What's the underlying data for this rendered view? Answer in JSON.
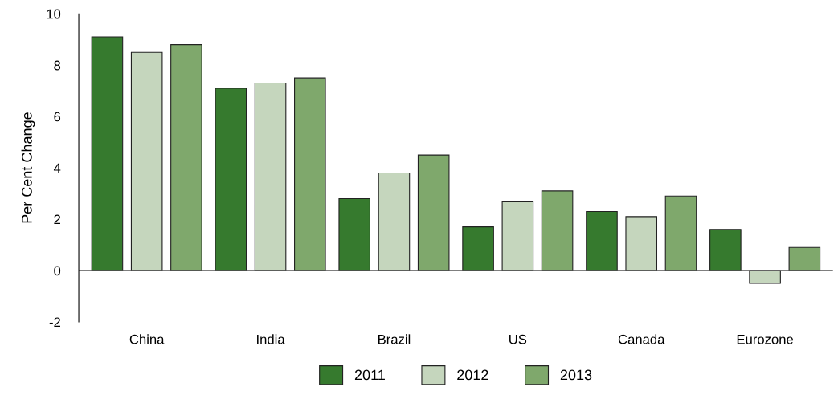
{
  "chart_data": {
    "type": "bar",
    "ylabel": "Per Cent Change",
    "categories": [
      "China",
      "India",
      "Brazil",
      "US",
      "Canada",
      "Eurozone"
    ],
    "series": [
      {
        "name": "2011",
        "color": "#367a2e",
        "values": [
          9.1,
          7.1,
          2.8,
          1.7,
          2.3,
          1.6
        ]
      },
      {
        "name": "2012",
        "color": "#c5d6bd",
        "values": [
          8.5,
          7.3,
          3.8,
          2.7,
          2.1,
          -0.5
        ]
      },
      {
        "name": "2013",
        "color": "#7fa86c",
        "values": [
          8.8,
          7.5,
          4.5,
          3.1,
          2.9,
          0.9
        ]
      }
    ],
    "ylim": [
      -2,
      10
    ],
    "yticks": [
      -2,
      0,
      2,
      4,
      6,
      8,
      10
    ],
    "ref_lines": [
      {
        "axis": "y",
        "value": 0,
        "color": "#555555"
      }
    ],
    "legend": "bottom"
  }
}
